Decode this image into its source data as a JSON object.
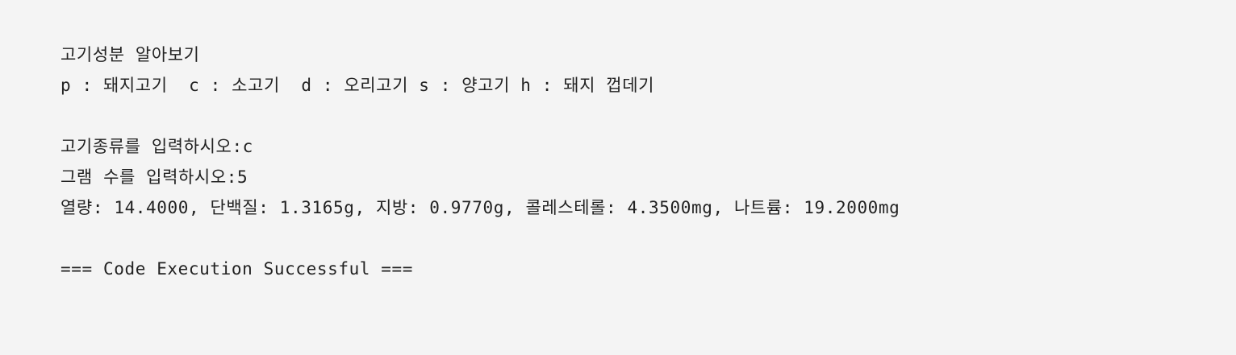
{
  "console": {
    "title": "고기성분 알아보기",
    "options": "p : 돼지고기  c : 소고기  d : 오리고기 s : 양고기 h : 돼지 껍데기",
    "prompt_type": "고기종류를 입력하시오:c",
    "prompt_grams": "그램 수를 입력하시오:5",
    "result": "열량: 14.4000, 단백질: 1.3165g, 지방: 0.9770g, 콜레스테롤: 4.3500mg, 나트륨: 19.2000mg",
    "status": "=== Code Execution Successful ==="
  }
}
